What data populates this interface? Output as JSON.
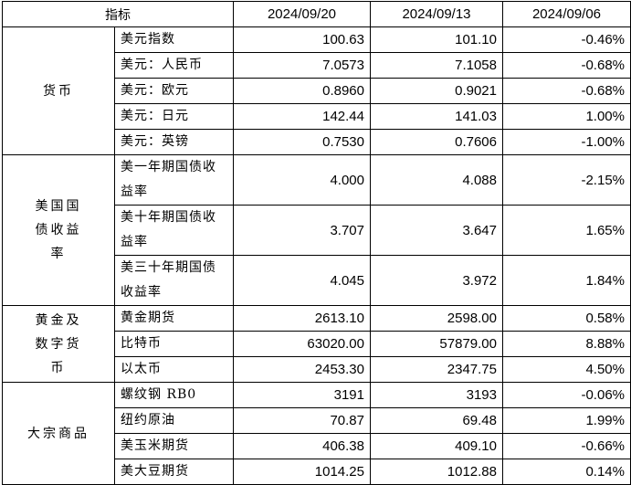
{
  "header": {
    "indicator": "指标",
    "dates": [
      "2024/09/20",
      "2024/09/13",
      "2024/09/06"
    ]
  },
  "groups": [
    {
      "category": "货币",
      "rows": [
        {
          "name": "美元指数",
          "v1": "100.63",
          "v2": "101.10",
          "chg": "-0.46%"
        },
        {
          "name": "美元：人民币",
          "v1": "7.0573",
          "v2": "7.1058",
          "chg": "-0.68%"
        },
        {
          "name": "美元：欧元",
          "v1": "0.8960",
          "v2": "0.9021",
          "chg": "-0.68%"
        },
        {
          "name": "美元：日元",
          "v1": "142.44",
          "v2": "141.03",
          "chg": "1.00%"
        },
        {
          "name": "美元：英镑",
          "v1": "0.7530",
          "v2": "0.7606",
          "chg": "-1.00%"
        }
      ]
    },
    {
      "category": "美国国债收益率",
      "rows": [
        {
          "name": "美一年期国债收益率",
          "v1": "4.000",
          "v2": "4.088",
          "chg": "-2.15%"
        },
        {
          "name": "美十年期国债收益率",
          "v1": "3.707",
          "v2": "3.647",
          "chg": "1.65%"
        },
        {
          "name": "美三十年期国债收益率",
          "v1": "4.045",
          "v2": "3.972",
          "chg": "1.84%"
        }
      ]
    },
    {
      "category": "黄金及数字货币",
      "rows": [
        {
          "name": "黄金期货",
          "v1": "2613.10",
          "v2": "2598.00",
          "chg": "0.58%"
        },
        {
          "name": "比特币",
          "v1": "63020.00",
          "v2": "57879.00",
          "chg": "8.88%"
        },
        {
          "name": "以太币",
          "v1": "2453.30",
          "v2": "2347.75",
          "chg": "4.50%"
        }
      ]
    },
    {
      "category": "大宗商品",
      "rows": [
        {
          "name": "螺纹钢 RB0",
          "v1": "3191",
          "v2": "3193",
          "chg": "-0.06%"
        },
        {
          "name": "纽约原油",
          "v1": "70.87",
          "v2": "69.48",
          "chg": "1.99%"
        },
        {
          "name": "美玉米期货",
          "v1": "406.38",
          "v2": "409.10",
          "chg": "-0.66%"
        },
        {
          "name": "美大豆期货",
          "v1": "1014.25",
          "v2": "1012.88",
          "chg": "0.14%"
        }
      ]
    }
  ]
}
